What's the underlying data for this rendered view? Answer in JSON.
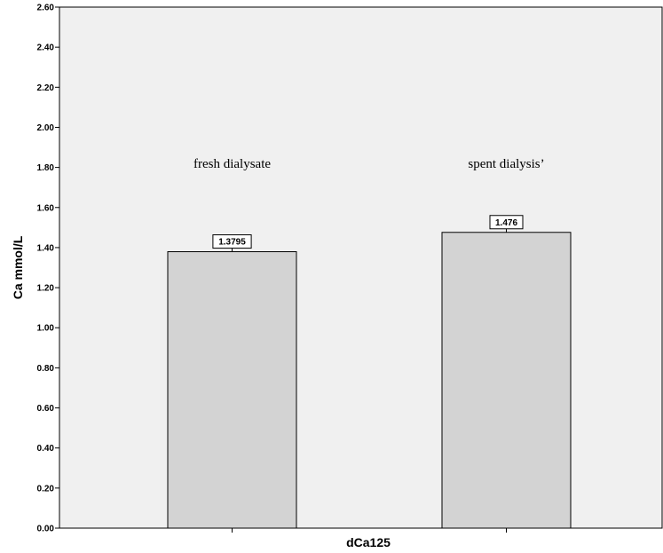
{
  "chart_data": {
    "type": "bar",
    "xlabel": "dCa125",
    "ylabel": "Ca mmol/L",
    "ylim": [
      0,
      2.6
    ],
    "yticks": [
      "0.00",
      "0.20",
      "0.40",
      "0.60",
      "0.80",
      "1.00",
      "1.20",
      "1.40",
      "1.60",
      "1.80",
      "2.00",
      "2.20",
      "2.40",
      "2.60"
    ],
    "categories": [
      "fresh dialysate",
      "spent dialysis’"
    ],
    "values": [
      1.3795,
      1.476
    ],
    "value_labels": [
      "1.3795",
      "1.476"
    ],
    "grid": false,
    "colors": {
      "plot_background": "#f0f0f0",
      "bar_fill": "#d3d3d3",
      "bar_stroke": "#000000"
    }
  }
}
